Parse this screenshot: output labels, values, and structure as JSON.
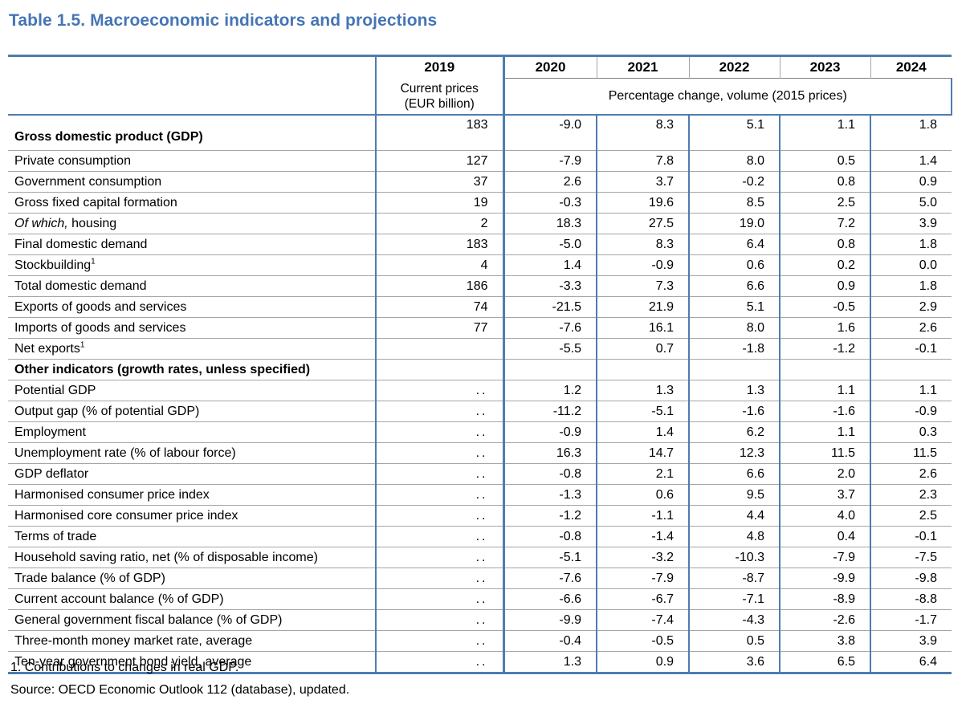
{
  "title": "Table 1.5. Macroeconomic indicators and projections",
  "table": {
    "header": {
      "y2019": "2019",
      "sub2019_line1": "Current prices",
      "sub2019_line2": "(EUR billion)",
      "years": [
        "2020",
        "2021",
        "2022",
        "2023",
        "2024"
      ],
      "span_label": "Percentage change, volume (2015 prices)"
    },
    "rows": [
      {
        "label": "Gross domestic product (GDP)",
        "bold": true,
        "v2019": "183",
        "values": [
          "-9.0",
          "8.3",
          "5.1",
          "1.1",
          "1.8"
        ]
      },
      {
        "label": "Private consumption",
        "v2019": "127",
        "values": [
          "-7.9",
          "7.8",
          "8.0",
          "0.5",
          "1.4"
        ]
      },
      {
        "label": "Government consumption",
        "v2019": "37",
        "values": [
          "2.6",
          "3.7",
          "-0.2",
          "0.8",
          "0.9"
        ]
      },
      {
        "label": "Gross fixed capital formation",
        "v2019": "19",
        "values": [
          "-0.3",
          "19.6",
          "8.5",
          "2.5",
          "5.0"
        ]
      },
      {
        "label_italic": "Of which,",
        "label": " housing",
        "v2019": "2",
        "values": [
          "18.3",
          "27.5",
          "19.0",
          "7.2",
          "3.9"
        ]
      },
      {
        "label": "Final domestic demand",
        "v2019": "183",
        "values": [
          "-5.0",
          "8.3",
          "6.4",
          "0.8",
          "1.8"
        ]
      },
      {
        "label": "Stockbuilding",
        "sup": "1",
        "v2019": "4",
        "values": [
          "1.4",
          "-0.9",
          "0.6",
          "0.2",
          "0.0"
        ]
      },
      {
        "label": "Total domestic demand",
        "v2019": "186",
        "values": [
          "-3.3",
          "7.3",
          "6.6",
          "0.9",
          "1.8"
        ]
      },
      {
        "label": "Exports of goods and services",
        "v2019": "74",
        "values": [
          "-21.5",
          "21.9",
          "5.1",
          "-0.5",
          "2.9"
        ]
      },
      {
        "label": "Imports of goods and services",
        "v2019": "77",
        "values": [
          "-7.6",
          "16.1",
          "8.0",
          "1.6",
          "2.6"
        ]
      },
      {
        "label": "Net exports",
        "sup": "1",
        "v2019": "",
        "values": [
          "-5.5",
          "0.7",
          "-1.8",
          "-1.2",
          "-0.1"
        ]
      },
      {
        "label": "Other indicators (growth rates, unless specified)",
        "bold": true,
        "v2019": "",
        "values": [
          "",
          "",
          "",
          "",
          ""
        ]
      },
      {
        "label": "Potential GDP",
        "v2019": "..",
        "values": [
          "1.2",
          "1.3",
          "1.3",
          "1.1",
          "1.1"
        ]
      },
      {
        "label": "Output gap (% of potential GDP)",
        "v2019": "..",
        "values": [
          "-11.2",
          "-5.1",
          "-1.6",
          "-1.6",
          "-0.9"
        ]
      },
      {
        "label": "Employment",
        "v2019": "..",
        "values": [
          "-0.9",
          "1.4",
          "6.2",
          "1.1",
          "0.3"
        ]
      },
      {
        "label": "Unemployment rate (% of labour force)",
        "v2019": "..",
        "values": [
          "16.3",
          "14.7",
          "12.3",
          "11.5",
          "11.5"
        ]
      },
      {
        "label": "GDP deflator",
        "v2019": "..",
        "values": [
          "-0.8",
          "2.1",
          "6.6",
          "2.0",
          "2.6"
        ]
      },
      {
        "label": "Harmonised consumer price index",
        "v2019": "..",
        "values": [
          "-1.3",
          "0.6",
          "9.5",
          "3.7",
          "2.3"
        ]
      },
      {
        "label": "Harmonised core consumer price index",
        "v2019": "..",
        "values": [
          "-1.2",
          "-1.1",
          "4.4",
          "4.0",
          "2.5"
        ]
      },
      {
        "label": "Terms of trade",
        "v2019": "..",
        "values": [
          "-0.8",
          "-1.4",
          "4.8",
          "0.4",
          "-0.1"
        ]
      },
      {
        "label": "Household saving ratio, net (% of disposable income)",
        "v2019": "..",
        "values": [
          "-5.1",
          "-3.2",
          "-10.3",
          "-7.9",
          "-7.5"
        ]
      },
      {
        "label": "Trade balance (% of GDP)",
        "v2019": "..",
        "values": [
          "-7.6",
          "-7.9",
          "-8.7",
          "-9.9",
          "-9.8"
        ]
      },
      {
        "label": "Current account balance (% of GDP)",
        "v2019": "..",
        "values": [
          "-6.6",
          "-6.7",
          "-7.1",
          "-8.9",
          "-8.8"
        ]
      },
      {
        "label": "General government fiscal balance (% of GDP)",
        "v2019": "..",
        "values": [
          "-9.9",
          "-7.4",
          "-4.3",
          "-2.6",
          "-1.7"
        ]
      },
      {
        "label": "Three-month money market rate, average",
        "v2019": "..",
        "values": [
          "-0.4",
          "-0.5",
          "0.5",
          "3.8",
          "3.9"
        ]
      },
      {
        "label": "Ten-year government bond yield, average",
        "v2019": "..",
        "values": [
          "1.3",
          "0.9",
          "3.6",
          "6.5",
          "6.4"
        ]
      }
    ]
  },
  "footnotes": [
    "1. Contributions to changes in real GDP.",
    "Source: OECD Economic Outlook 112 (database), updated."
  ],
  "colors": {
    "title_blue": "#4575b5",
    "rule_blue": "#4e7cb0",
    "row_rule_gray": "#a6a6a6"
  }
}
